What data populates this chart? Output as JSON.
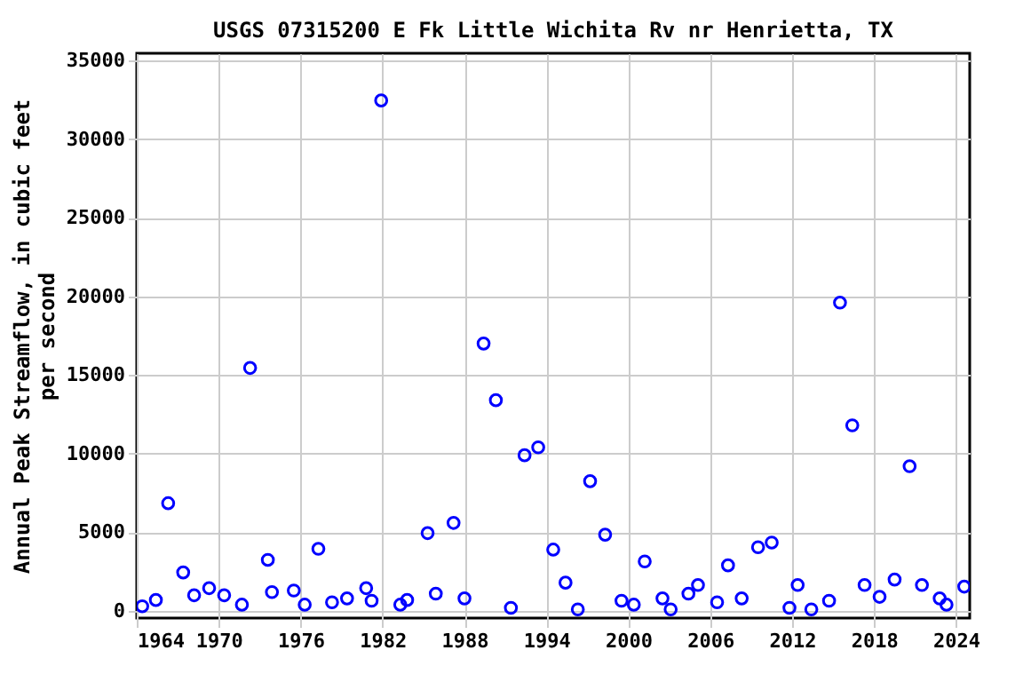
{
  "chart_data": {
    "type": "scatter",
    "title": "USGS 07315200 E Fk Little Wichita Rv nr Henrietta, TX",
    "ylabel": "Annual Peak Streamflow, in cubic feet\nper second",
    "x": [
      1964.4,
      1965.4,
      1966.3,
      1967.4,
      1968.2,
      1969.3,
      1970.4,
      1971.7,
      1972.3,
      1973.6,
      1973.9,
      1975.5,
      1976.3,
      1977.3,
      1978.3,
      1979.4,
      1980.8,
      1981.2,
      1981.9,
      1983.3,
      1983.8,
      1985.3,
      1985.9,
      1987.2,
      1988.0,
      1989.4,
      1990.3,
      1991.4,
      1992.4,
      1993.4,
      1994.5,
      1995.4,
      1996.3,
      1997.2,
      1998.3,
      1999.5,
      2000.4,
      2001.2,
      2002.5,
      2003.1,
      2004.4,
      2005.1,
      2006.5,
      2007.3,
      2008.3,
      2009.5,
      2010.5,
      2011.8,
      2012.4,
      2013.4,
      2014.7,
      2015.5,
      2016.4,
      2017.3,
      2018.4,
      2019.5,
      2020.6,
      2021.5,
      2022.8,
      2023.3,
      2024.6
    ],
    "series": [
      {
        "color": "#0000ff",
        "values": [
          300,
          700,
          6850,
          2450,
          1000,
          1450,
          1000,
          400,
          15450,
          3250,
          1200,
          1300,
          400,
          3950,
          550,
          800,
          1450,
          650,
          32450,
          400,
          700,
          4950,
          1100,
          5600,
          800,
          17000,
          13400,
          200,
          9900,
          10400,
          3900,
          1800,
          100,
          8250,
          4850,
          650,
          400,
          3150,
          800,
          100,
          1100,
          1650,
          550,
          2900,
          800,
          4050,
          4350,
          200,
          1650,
          100,
          650,
          19600,
          11800,
          1650,
          900,
          2000,
          9200,
          1650,
          800,
          400,
          1550
        ]
      }
    ],
    "xlim": [
      1964,
      2025
    ],
    "xticks": [
      1964,
      1970,
      1976,
      1982,
      1988,
      1994,
      2000,
      2006,
      2012,
      2018,
      2024
    ],
    "ylim": [
      -450,
      35450
    ],
    "yticks": [
      0,
      5000,
      10000,
      15000,
      20000,
      25000,
      30000,
      35000
    ],
    "grid": true,
    "marker": "circle"
  }
}
